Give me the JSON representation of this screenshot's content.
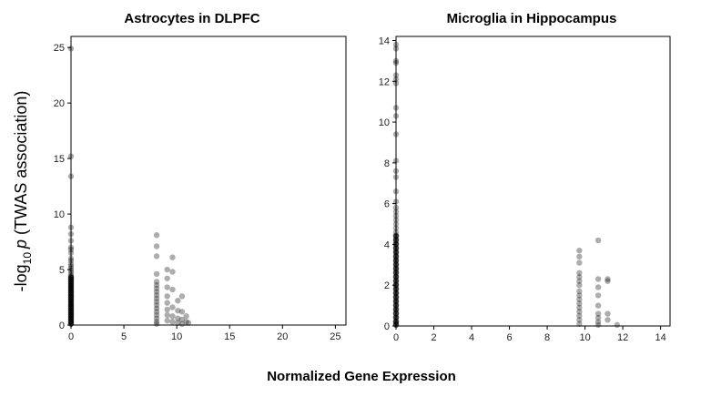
{
  "figure": {
    "xlabel": "Normalized Gene Expression",
    "ylabel_prefix": "-log",
    "ylabel_sub": "10",
    "ylabel_p": "p",
    "ylabel_suffix": " (TWAS association)"
  },
  "chart_data": [
    {
      "type": "scatter",
      "title": "Astrocytes in DLPFC",
      "xlim": [
        0,
        26
      ],
      "ylim": [
        0,
        26
      ],
      "xticks": [
        0,
        5,
        10,
        15,
        20,
        25
      ],
      "yticks": [
        0,
        5,
        10,
        15,
        20,
        25
      ],
      "grid": false,
      "points": [
        [
          0,
          24.9
        ],
        [
          0,
          15.2
        ],
        [
          0,
          13.4
        ],
        [
          0,
          8.8
        ],
        [
          0,
          8.2
        ],
        [
          0,
          7.6
        ],
        [
          0,
          7.0
        ],
        [
          0,
          6.8
        ],
        [
          0,
          6.5
        ],
        [
          0,
          6.0
        ],
        [
          0,
          5.8
        ],
        [
          0,
          5.5
        ],
        [
          0,
          5.3
        ],
        [
          0,
          5.1
        ],
        [
          0,
          4.9
        ],
        [
          0,
          4.7
        ],
        [
          0,
          4.5
        ],
        [
          0,
          4.3
        ],
        [
          0,
          4.1
        ],
        [
          0,
          3.9
        ],
        [
          0,
          3.7
        ],
        [
          0,
          3.5
        ],
        [
          0,
          3.3
        ],
        [
          0,
          3.1
        ],
        [
          0,
          2.9
        ],
        [
          0,
          2.7
        ],
        [
          0,
          2.5
        ],
        [
          0,
          2.3
        ],
        [
          0,
          2.1
        ],
        [
          0,
          1.9
        ],
        [
          0,
          1.7
        ],
        [
          0,
          1.5
        ],
        [
          0,
          1.3
        ],
        [
          0,
          1.1
        ],
        [
          0,
          0.9
        ],
        [
          0,
          0.7
        ],
        [
          0,
          0.5
        ],
        [
          0,
          0.3
        ],
        [
          0,
          0.1
        ],
        [
          8.1,
          8.1
        ],
        [
          8.1,
          7.1
        ],
        [
          8.1,
          6.2
        ],
        [
          8.1,
          4.6
        ],
        [
          8.1,
          3.9
        ],
        [
          8.1,
          3.6
        ],
        [
          8.1,
          3.3
        ],
        [
          8.1,
          3.0
        ],
        [
          8.1,
          2.7
        ],
        [
          8.1,
          2.4
        ],
        [
          8.1,
          2.1
        ],
        [
          8.1,
          1.8
        ],
        [
          8.1,
          1.5
        ],
        [
          8.1,
          1.2
        ],
        [
          8.1,
          0.9
        ],
        [
          8.1,
          0.6
        ],
        [
          8.1,
          0.3
        ],
        [
          8.1,
          0.1
        ],
        [
          9.1,
          5.0
        ],
        [
          9.1,
          4.2
        ],
        [
          9.1,
          3.4
        ],
        [
          9.1,
          2.6
        ],
        [
          9.1,
          2.0
        ],
        [
          9.1,
          1.4
        ],
        [
          9.1,
          0.9
        ],
        [
          9.1,
          0.4
        ],
        [
          9.6,
          6.1
        ],
        [
          9.6,
          4.8
        ],
        [
          9.6,
          3.2
        ],
        [
          9.6,
          1.6
        ],
        [
          9.6,
          0.8
        ],
        [
          9.6,
          0.3
        ],
        [
          10.1,
          2.2
        ],
        [
          10.1,
          1.3
        ],
        [
          10.1,
          0.6
        ],
        [
          10.1,
          0.2
        ],
        [
          10.5,
          2.6
        ],
        [
          10.5,
          1.2
        ],
        [
          10.5,
          0.5
        ],
        [
          10.5,
          0.1
        ],
        [
          10.9,
          0.8
        ],
        [
          10.9,
          0.3
        ],
        [
          11.1,
          0.2
        ]
      ]
    },
    {
      "type": "scatter",
      "title": "Microglia in Hippocampus",
      "xlim": [
        0,
        14.5
      ],
      "ylim": [
        0,
        14.2
      ],
      "xticks": [
        0,
        2,
        4,
        6,
        8,
        10,
        12,
        14
      ],
      "yticks": [
        0,
        2,
        4,
        6,
        8,
        10,
        12,
        14
      ],
      "grid": false,
      "points": [
        [
          0,
          13.8
        ],
        [
          0,
          13.6
        ],
        [
          0,
          13.0
        ],
        [
          0,
          12.9
        ],
        [
          0,
          12.3
        ],
        [
          0,
          12.1
        ],
        [
          0,
          11.9
        ],
        [
          0,
          10.7
        ],
        [
          0,
          10.3
        ],
        [
          0,
          9.4
        ],
        [
          0,
          8.1
        ],
        [
          0,
          7.6
        ],
        [
          0,
          7.3
        ],
        [
          0,
          6.6
        ],
        [
          0,
          6.1
        ],
        [
          0,
          5.8
        ],
        [
          0,
          5.6
        ],
        [
          0,
          5.4
        ],
        [
          0,
          5.2
        ],
        [
          0,
          5.0
        ],
        [
          0,
          4.8
        ],
        [
          0,
          4.6
        ],
        [
          0,
          4.4
        ],
        [
          0,
          4.2
        ],
        [
          0,
          4.0
        ],
        [
          0,
          3.8
        ],
        [
          0,
          3.6
        ],
        [
          0,
          3.4
        ],
        [
          0,
          3.2
        ],
        [
          0,
          3.0
        ],
        [
          0,
          2.8
        ],
        [
          0,
          2.6
        ],
        [
          0,
          2.4
        ],
        [
          0,
          2.2
        ],
        [
          0,
          2.0
        ],
        [
          0,
          1.8
        ],
        [
          0,
          1.6
        ],
        [
          0,
          1.4
        ],
        [
          0,
          1.2
        ],
        [
          0,
          1.0
        ],
        [
          0,
          0.8
        ],
        [
          0,
          0.6
        ],
        [
          0,
          0.4
        ],
        [
          0,
          0.2
        ],
        [
          0,
          0.05
        ],
        [
          9.7,
          3.7
        ],
        [
          9.7,
          3.4
        ],
        [
          9.7,
          3.1
        ],
        [
          9.7,
          2.6
        ],
        [
          9.7,
          2.4
        ],
        [
          9.7,
          2.2
        ],
        [
          9.7,
          2.0
        ],
        [
          9.7,
          1.7
        ],
        [
          9.7,
          1.5
        ],
        [
          9.7,
          1.3
        ],
        [
          9.7,
          1.1
        ],
        [
          9.7,
          0.9
        ],
        [
          9.7,
          0.7
        ],
        [
          9.7,
          0.5
        ],
        [
          9.7,
          0.3
        ],
        [
          9.7,
          0.1
        ],
        [
          10.7,
          4.2
        ],
        [
          10.7,
          2.3
        ],
        [
          10.7,
          1.9
        ],
        [
          10.7,
          1.5
        ],
        [
          10.7,
          1.0
        ],
        [
          10.7,
          0.6
        ],
        [
          10.7,
          0.4
        ],
        [
          10.7,
          0.2
        ],
        [
          10.7,
          0.05
        ],
        [
          11.2,
          2.3
        ],
        [
          11.2,
          2.2
        ],
        [
          11.2,
          0.6
        ],
        [
          11.2,
          0.3
        ],
        [
          11.7,
          0.05
        ]
      ]
    }
  ]
}
